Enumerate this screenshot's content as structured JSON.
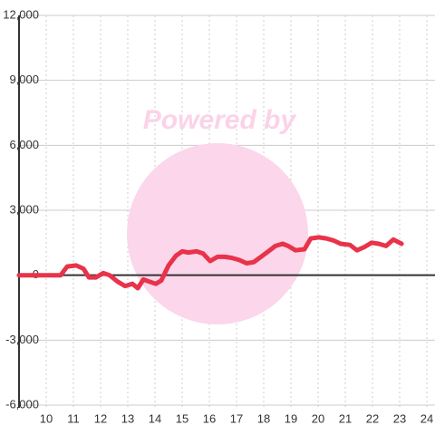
{
  "chart_data": {
    "type": "line",
    "watermark": "Powered by",
    "x": [
      9.0,
      10.53,
      10.77,
      11.1,
      11.37,
      11.57,
      11.83,
      12.1,
      12.33,
      12.63,
      12.9,
      13.17,
      13.37,
      13.57,
      13.8,
      14.03,
      14.23,
      14.5,
      14.77,
      15.0,
      15.23,
      15.53,
      15.77,
      16.03,
      16.3,
      16.57,
      16.83,
      17.1,
      17.37,
      17.63,
      17.9,
      18.17,
      18.43,
      18.7,
      18.9,
      19.17,
      19.5,
      19.73,
      20.03,
      20.3,
      20.57,
      20.83,
      21.17,
      21.43,
      21.7,
      21.97,
      22.23,
      22.5,
      22.77,
      23.07
    ],
    "values": [
      0,
      0,
      400,
      450,
      300,
      -100,
      -100,
      100,
      0,
      -300,
      -500,
      -400,
      -600,
      -200,
      -300,
      -400,
      -250,
      450,
      900,
      1100,
      1050,
      1100,
      1000,
      650,
      850,
      850,
      800,
      700,
      550,
      600,
      850,
      1100,
      1350,
      1450,
      1350,
      1150,
      1200,
      1700,
      1750,
      1700,
      1600,
      1450,
      1400,
      1150,
      1300,
      1500,
      1450,
      1350,
      1650,
      1450
    ],
    "color": "#e8334a",
    "xlim": [
      9,
      24.3
    ],
    "xticks": [
      10,
      11,
      12,
      13,
      14,
      15,
      16,
      17,
      18,
      19,
      20,
      21,
      22,
      23,
      24
    ],
    "ylim": [
      -6000,
      12000
    ],
    "yticks": [
      {
        "value": -6000,
        "label": "-6,000"
      },
      {
        "value": -3000,
        "label": "-3,000"
      },
      0,
      {
        "value": 3000,
        "label": "3,000"
      },
      {
        "value": 6000,
        "label": "6,000"
      },
      {
        "value": 9000,
        "label": "9,000"
      },
      {
        "value": 12000,
        "label": "12,000"
      }
    ],
    "grid": true
  }
}
